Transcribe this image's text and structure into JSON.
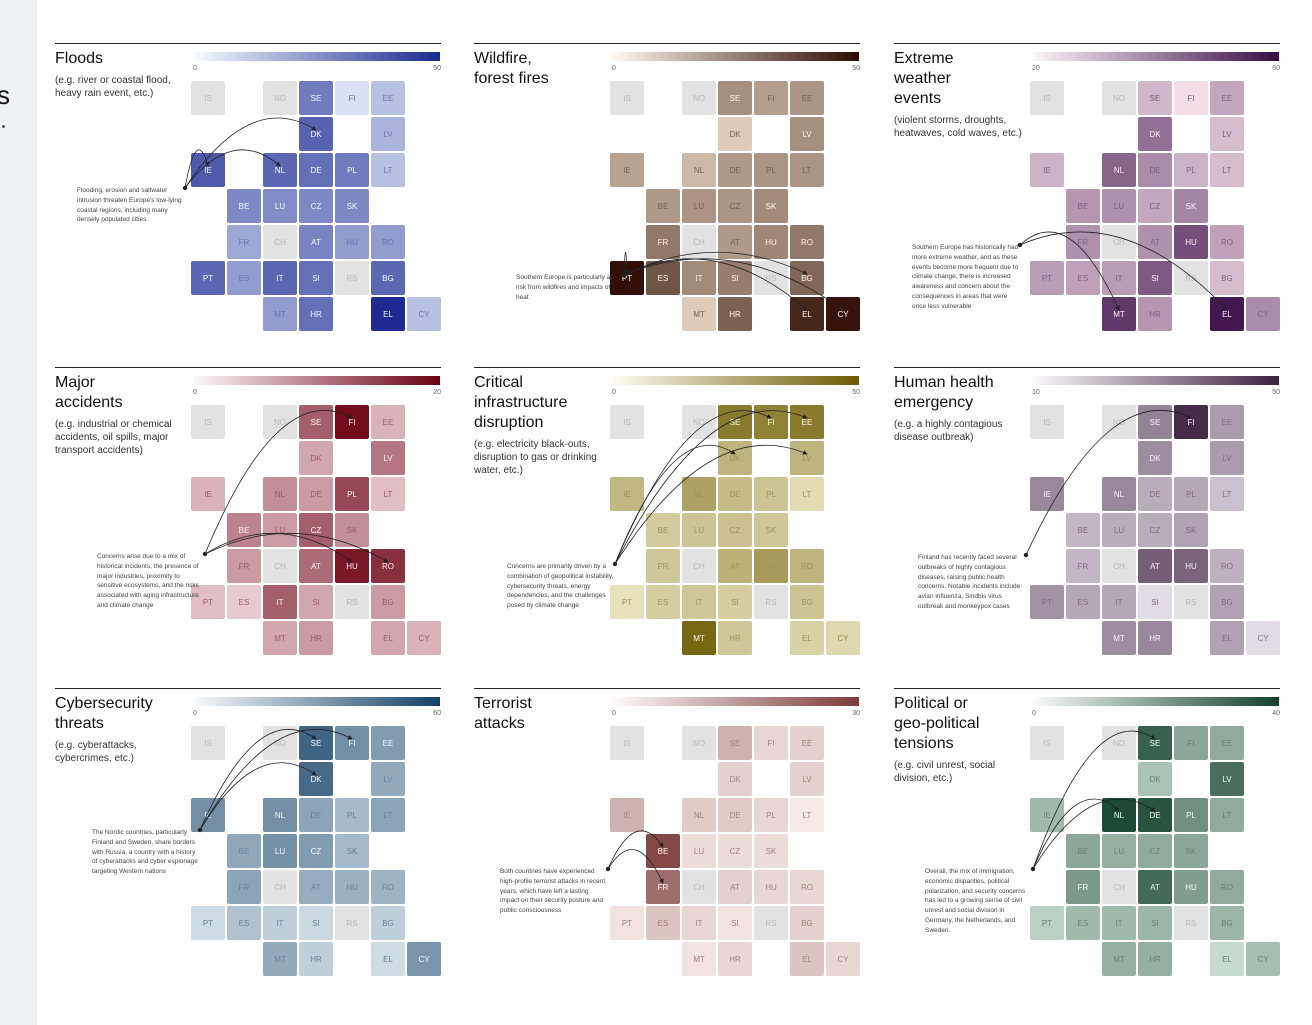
{
  "colors": {
    "empty": "#e2e2e2"
  },
  "panels": [
    {
      "id": "floods",
      "title_lines": [
        "Floods"
      ],
      "subtitle": "(e.g. river or coastal flood, heavy rain event, etc.)",
      "scale": {
        "min": "0",
        "max": "50"
      },
      "colors": {
        "low": "#eef6ff",
        "high": "#1c2a91"
      },
      "note": "Flooding, erosion and saltwater intrusion threaten Europe's low-lying coastal regions, including many densely populated cities",
      "arrow_targets": [
        "IE",
        "NL",
        "DK"
      ],
      "values": {
        "SE": 30,
        "FI": 5,
        "EE": 13,
        "DK": 36,
        "LV": 16,
        "IE": 38,
        "NL": 35,
        "DE": 33,
        "PL": 30,
        "LT": 13,
        "BE": 27,
        "LU": 26,
        "CZ": 27,
        "SK": 27,
        "FR": 19,
        "AT": 28,
        "HU": 22,
        "RO": 22,
        "PT": 35,
        "ES": 22,
        "IT": 35,
        "SI": 33,
        "BG": 35,
        "MT": 22,
        "HR": 33,
        "EL": 50,
        "CY": 13
      }
    },
    {
      "id": "wildfire",
      "title_lines": [
        "Wildfire,",
        "forest fires"
      ],
      "subtitle": "",
      "scale": {
        "min": "0",
        "max": "50"
      },
      "colors": {
        "low": "#fff0dc",
        "high": "#2e0a02"
      },
      "note": "Southern Europe is particularly at risk from wildfires and impacts of heat",
      "arrow_targets": [
        "PT",
        "BG",
        "EL",
        "CY"
      ],
      "values": {
        "SE": 21,
        "FI": 18,
        "EE": 20,
        "DK": 8,
        "LV": 21,
        "IE": 17,
        "NL": 12,
        "DE": 19,
        "PL": 20,
        "LT": 20,
        "BE": 19,
        "LU": 20,
        "CZ": 20,
        "SK": 22,
        "FR": 26,
        "AT": 19,
        "HU": 23,
        "RO": 26,
        "PT": 49,
        "ES": 34,
        "IT": 22,
        "SI": 25,
        "BG": 30,
        "MT": 8,
        "HR": 31,
        "EL": 44,
        "CY": 48
      }
    },
    {
      "id": "extreme",
      "title_lines": [
        "Extreme",
        "weather",
        "events"
      ],
      "subtitle": "(violent storms, droughts, heatwaves, cold waves, etc.)",
      "scale": {
        "min": "20",
        "max": "60"
      },
      "colors": {
        "low": "#fde9f0",
        "high": "#3a0c48"
      },
      "note": "Southern Europe has historically had more extreme weather, and as these events become more frequent due to climate change, there is increased awareness and concern about the consequences in areas that were once less vulnerable",
      "arrow_targets": [
        "MT",
        "EL"
      ],
      "values": {
        "SE": 29,
        "FI": 22,
        "EE": 32,
        "DK": 42,
        "LV": 28,
        "IE": 30,
        "NL": 44,
        "DE": 37,
        "PL": 30,
        "LT": 28,
        "BE": 35,
        "LU": 36,
        "CZ": 32,
        "SK": 38,
        "FR": 36,
        "AT": 36,
        "HU": 48,
        "RO": 33,
        "PT": 34,
        "ES": 33,
        "IT": 34,
        "SI": 46,
        "BG": 28,
        "MT": 52,
        "HR": 35,
        "EL": 58,
        "CY": 37
      }
    },
    {
      "id": "accidents",
      "title_lines": [
        "Major",
        "accidents"
      ],
      "subtitle": "(e.g. industrial or chemical accidents, oil spills, major transport accidents)",
      "scale": {
        "min": "0",
        "max": "20"
      },
      "colors": {
        "low": "#fdeef0",
        "high": "#6b0012"
      },
      "note": "Concerns arise due to a mix of historical incidents, the presence of major industries, proximity to sensitive ecosystems, and the risks associated with aging infrastructure and climate change",
      "arrow_targets": [
        "FI",
        "HU",
        "RO"
      ],
      "values": {
        "SE": 12,
        "FI": 19,
        "EE": 5,
        "DK": 6,
        "LV": 10,
        "IE": 5,
        "NL": 8,
        "DE": 7,
        "PL": 14,
        "LT": 4,
        "BE": 9,
        "LU": 7,
        "CZ": 12,
        "SK": 8,
        "FR": 7,
        "AT": 11,
        "HU": 18,
        "RO": 16,
        "PT": 4,
        "ES": 3,
        "IT": 12,
        "SI": 6,
        "BG": 7,
        "MT": 6,
        "HR": 7,
        "EL": 6,
        "CY": 5
      }
    },
    {
      "id": "infrastructure",
      "title_lines": [
        "Critical",
        "infrastructure",
        "disruption"
      ],
      "subtitle": "(e.g. electricity black-outs, disruption to gas or drinking water, etc.)",
      "scale": {
        "min": "0",
        "max": "50"
      },
      "colors": {
        "low": "#fffbe0",
        "high": "#6c5a00"
      },
      "note": "Concerns are primarily driven by a combination of geopolitical instability, cybersecurity threats, energy dependencies, and the challenges posed by climate change",
      "arrow_targets": [
        "DK",
        "LV",
        "FI",
        "EE"
      ],
      "values": {
        "SE": 40,
        "FI": 38,
        "EE": 40,
        "DK": 22,
        "LV": 22,
        "IE": 21,
        "NL": 28,
        "DE": 20,
        "PL": 17,
        "LT": 10,
        "BE": 15,
        "LU": 17,
        "CZ": 18,
        "SK": 16,
        "FR": 16,
        "AT": 23,
        "HU": 30,
        "RO": 22,
        "PT": 8,
        "ES": 14,
        "IT": 16,
        "SI": 14,
        "BG": 17,
        "MT": 46,
        "HR": 16,
        "EL": 13,
        "CY": 11
      }
    },
    {
      "id": "health",
      "title_lines": [
        "Human health",
        "emergency"
      ],
      "subtitle": "(e.g. a highly contagious disease outbreak)",
      "scale": {
        "min": "10",
        "max": "50"
      },
      "colors": {
        "low": "#f4eef6",
        "high": "#3e2240"
      },
      "note": "Finland has recently faced several outbreaks of highly contagious diseases, raising public health concerns. Notable incidents include: avian influenza, Sindbis virus outbreak and monkeypox cases",
      "arrow_targets": [
        "FI"
      ],
      "values": {
        "SE": 31,
        "FI": 48,
        "EE": 26,
        "DK": 29,
        "LV": 26,
        "IE": 30,
        "NL": 30,
        "DE": 23,
        "PL": 24,
        "LT": 19,
        "BE": 21,
        "LU": 23,
        "CZ": 23,
        "SK": 25,
        "FR": 21,
        "AT": 38,
        "HU": 37,
        "RO": 22,
        "PT": 28,
        "ES": 24,
        "IT": 24,
        "SI": 14,
        "BG": 25,
        "MT": 29,
        "HR": 30,
        "EL": 25,
        "CY": 14
      }
    },
    {
      "id": "cyber",
      "title_lines": [
        "Cybersecurity",
        "threats"
      ],
      "subtitle": "(e.g. cyberattacks, cybercrimes, etc.)",
      "scale": {
        "min": "0",
        "max": "60"
      },
      "colors": {
        "low": "#eef6fa",
        "high": "#144066"
      },
      "note": "The Nordic countries, particularly Finland and Sweden, share borders with Russia, a country with a history of cyberattacks and cyber espionage targeting Western nations",
      "arrow_targets": [
        "SE",
        "DK",
        "FI"
      ],
      "values": {
        "SE": 48,
        "FI": 34,
        "EE": 30,
        "DK": 46,
        "LV": 25,
        "IE": 34,
        "NL": 34,
        "DE": 27,
        "PL": 20,
        "LT": 27,
        "BE": 26,
        "LU": 33,
        "CZ": 30,
        "SK": 20,
        "FR": 27,
        "AT": 24,
        "HU": 23,
        "RO": 22,
        "PT": 9,
        "ES": 17,
        "IT": 13,
        "SI": 10,
        "BG": 13,
        "MT": 25,
        "HR": 13,
        "EL": 9,
        "CY": 32
      }
    },
    {
      "id": "terror",
      "title_lines": [
        "Terrorist",
        "attacks"
      ],
      "subtitle": "",
      "scale": {
        "min": "0",
        "max": "30"
      },
      "colors": {
        "low": "#fff6f2",
        "high": "#7a3c3a"
      },
      "note": "Both countries have experienced high-profile terrorist attacks in recent years, which have left a lasting impact on their security posture and public consciousness",
      "arrow_targets": [
        "BE",
        "FR"
      ],
      "values": {
        "SE": 11,
        "FI": 5,
        "EE": 6,
        "DK": 6,
        "LV": 6,
        "IE": 11,
        "NL": 7,
        "DE": 7,
        "PL": 5,
        "LT": 2,
        "BE": 28,
        "LU": 4,
        "CZ": 4,
        "SK": 4,
        "FR": 22,
        "AT": 6,
        "HU": 5,
        "RO": 5,
        "PT": 3,
        "ES": 8,
        "IT": 5,
        "SI": 3,
        "BG": 6,
        "MT": 3,
        "HR": 5,
        "EL": 8,
        "CY": 5
      }
    },
    {
      "id": "political",
      "title_lines": [
        "Political or",
        "geo-political",
        "tensions"
      ],
      "subtitle": "(e.g. civil unrest, social division, etc.)",
      "scale": {
        "min": "0",
        "max": "40"
      },
      "colors": {
        "low": "#edfaf1",
        "high": "#12412a"
      },
      "note": "Overall, the mix of immigration, economic disparities, political polarization, and security concerns has led to a growing sense of civil unrest and social division in Germany, the Netherlands, and Sweden.",
      "arrow_targets": [
        "SE",
        "DE",
        "NL"
      ],
      "values": {
        "SE": 33,
        "FI": 18,
        "EE": 17,
        "DK": 12,
        "LV": 30,
        "IE": 14,
        "NL": 38,
        "DE": 36,
        "PL": 23,
        "LT": 17,
        "BE": 18,
        "LU": 16,
        "CZ": 17,
        "SK": 18,
        "FR": 21,
        "AT": 31,
        "HU": 20,
        "RO": 17,
        "PT": 9,
        "ES": 14,
        "IT": 14,
        "SI": 15,
        "BG": 15,
        "MT": 16,
        "HR": 16,
        "EL": 7,
        "CY": 13
      }
    }
  ]
}
